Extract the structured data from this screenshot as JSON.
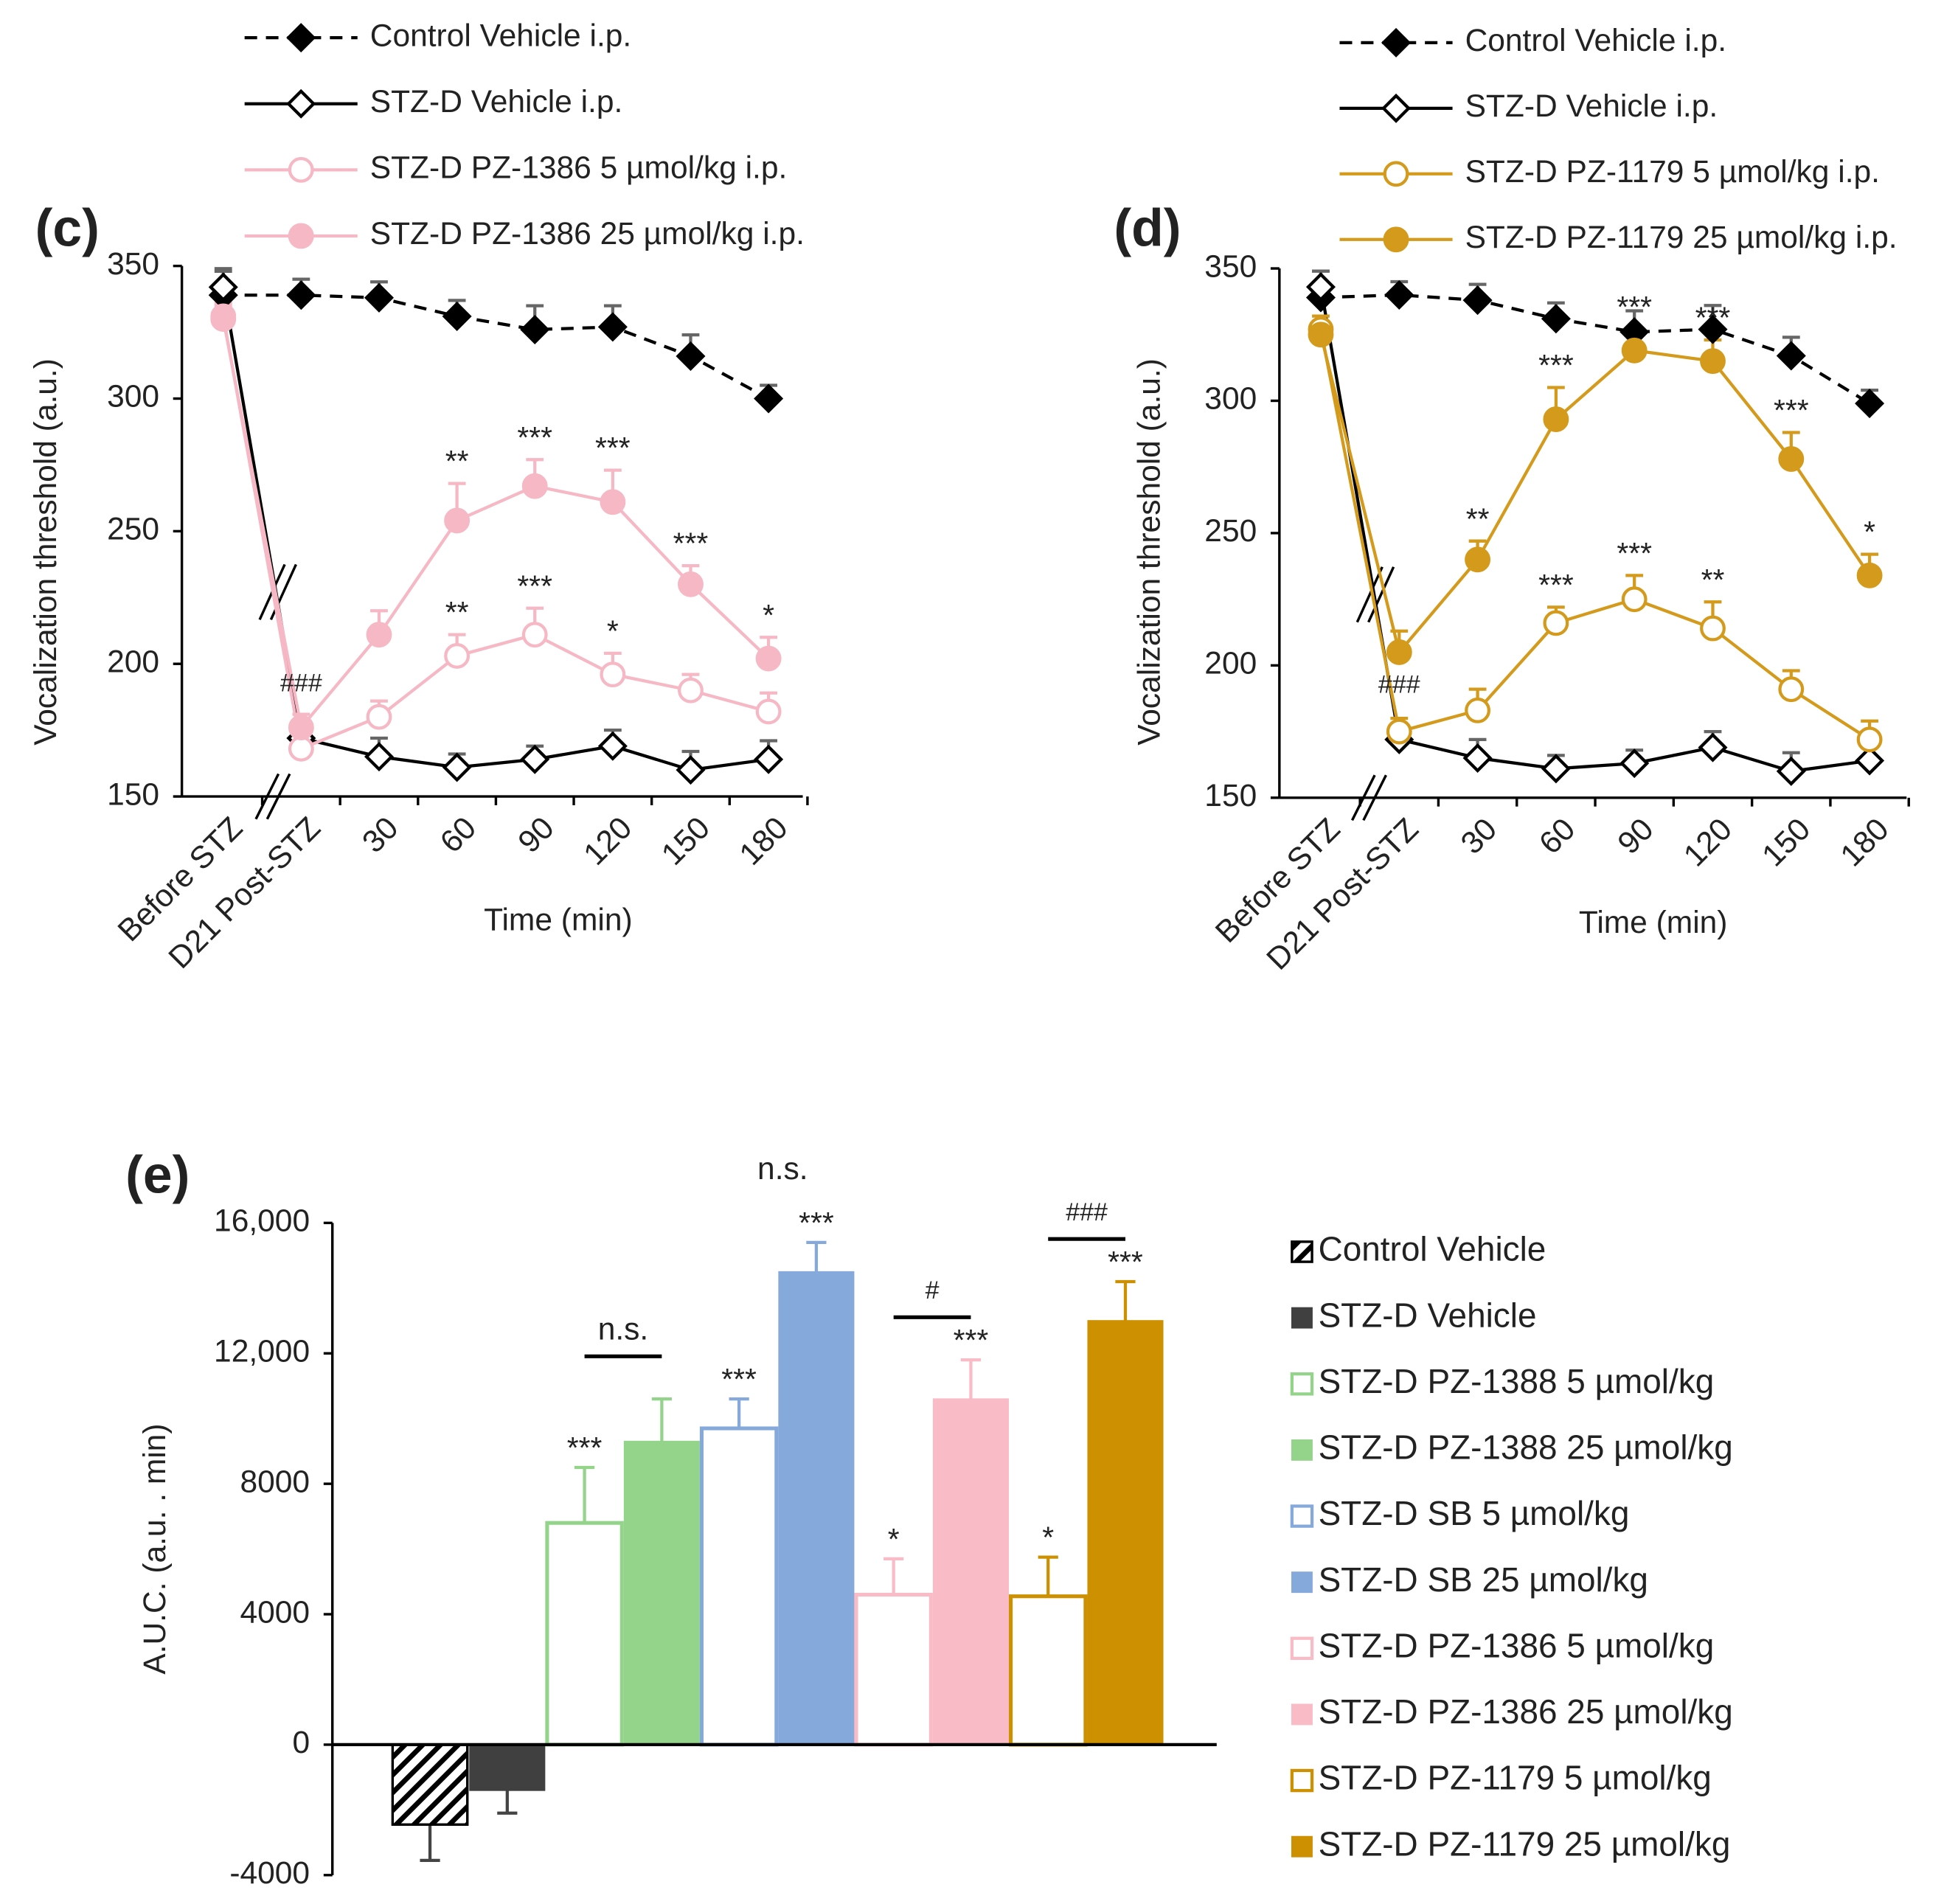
{
  "chart_data": [
    {
      "type": "line",
      "panel_label": "(c)",
      "y_label": "Vocalization threshold  (a.u.)",
      "x_label": "Time  (min)",
      "categories": [
        "Before STZ",
        "D21 Post-STZ",
        "30",
        "60",
        "90",
        "120",
        "150",
        "180"
      ],
      "ylim": [
        150,
        350
      ],
      "yticks": [
        150,
        200,
        250,
        300,
        350
      ],
      "series": [
        {
          "name": "Control Vehicle i.p.",
          "color": "#000000",
          "dashed": true,
          "marker": "diamond",
          "filled": true,
          "values": [
            339,
            339,
            338,
            331,
            326,
            327,
            316,
            300
          ],
          "errors": [
            10,
            6,
            6,
            6,
            9,
            8,
            8,
            5
          ],
          "significance": [
            null,
            null,
            null,
            null,
            null,
            null,
            null,
            null
          ]
        },
        {
          "name": "STZ-D Vehicle i.p.",
          "color": "#000000",
          "dashed": false,
          "marker": "diamond",
          "filled": false,
          "values": [
            342,
            172,
            165,
            161,
            164,
            169,
            160,
            164
          ],
          "errors": [
            6,
            5,
            7,
            5,
            5,
            6,
            7,
            7
          ],
          "significance": [
            null,
            "###",
            null,
            null,
            null,
            null,
            null,
            null
          ]
        },
        {
          "name": "STZ-D PZ-1386 5 µmol/kg i.p.",
          "color": "#f5b8c4",
          "dashed": false,
          "marker": "circle",
          "filled": false,
          "values": [
            331,
            168,
            180,
            203,
            211,
            196,
            190,
            182
          ],
          "errors": [
            5,
            5,
            6,
            8,
            10,
            8,
            6,
            7
          ],
          "significance": [
            null,
            null,
            null,
            "**",
            "***",
            "*",
            null,
            null
          ]
        },
        {
          "name": "STZ-D PZ-1386 25 µmol/kg i.p.",
          "color": "#f5b8c4",
          "dashed": false,
          "marker": "circle",
          "filled": true,
          "values": [
            330,
            176,
            211,
            254,
            267,
            261,
            230,
            202
          ],
          "errors": [
            5,
            5,
            9,
            14,
            10,
            12,
            7,
            8
          ],
          "significance": [
            null,
            null,
            null,
            "**",
            "***",
            "***",
            "***",
            "*"
          ]
        }
      ]
    },
    {
      "type": "line",
      "panel_label": "(d)",
      "y_label": "Vocalization threshold  (a.u.)",
      "x_label": "Time  (min)",
      "categories": [
        "Before STZ",
        "D21 Post-STZ",
        "30",
        "60",
        "90",
        "120",
        "150",
        "180"
      ],
      "ylim": [
        150,
        350
      ],
      "yticks": [
        150,
        200,
        250,
        300,
        350
      ],
      "series": [
        {
          "name": "Control Vehicle i.p.",
          "color": "#000000",
          "dashed": true,
          "marker": "diamond",
          "filled": true,
          "values": [
            339,
            340,
            338,
            331,
            326,
            327,
            317,
            299
          ],
          "errors": [
            10,
            5,
            6,
            6,
            8,
            9,
            7,
            5
          ],
          "significance": [
            null,
            null,
            null,
            null,
            null,
            null,
            null,
            null
          ]
        },
        {
          "name": "STZ-D Vehicle i.p.",
          "color": "#000000",
          "dashed": false,
          "marker": "diamond",
          "filled": false,
          "values": [
            343,
            172,
            165,
            161,
            163,
            169,
            160,
            164
          ],
          "errors": [
            6,
            5,
            7,
            5,
            5,
            6,
            7,
            7
          ],
          "significance": [
            null,
            "###",
            null,
            null,
            null,
            null,
            null,
            null
          ]
        },
        {
          "name": "STZ-D PZ-1179 5 µmol/kg i.p.",
          "color": "#d49a1c",
          "dashed": false,
          "marker": "circle",
          "filled": false,
          "values": [
            327,
            175,
            183,
            216,
            225,
            214,
            191,
            172
          ],
          "errors": [
            5,
            5,
            8,
            6,
            9,
            10,
            7,
            7
          ],
          "significance": [
            null,
            null,
            null,
            "***",
            "***",
            "**",
            null,
            null
          ]
        },
        {
          "name": "STZ-D PZ-1179 25 µmol/kg i.p.",
          "color": "#d49a1c",
          "dashed": false,
          "marker": "circle",
          "filled": true,
          "values": [
            325,
            205,
            240,
            293,
            319,
            315,
            278,
            234
          ],
          "errors": [
            5,
            8,
            7,
            12,
            8,
            8,
            10,
            8
          ],
          "significance": [
            null,
            null,
            "**",
            "***",
            "***",
            "***",
            "***",
            "*"
          ]
        }
      ]
    },
    {
      "type": "bar",
      "panel_label": "(e)",
      "y_label": "A.U.C. (a.u. . min)",
      "ylim": [
        -4000,
        16000
      ],
      "yticks": [
        -4000,
        0,
        4000,
        8000,
        {
          "value": 12000,
          "label": "12,000"
        },
        {
          "value": 16000,
          "label": "16,000"
        }
      ],
      "categories": [
        "Control Vehicle",
        "STZ-D Vehicle",
        "STZ-D PZ-1388 5 µmol/kg",
        "STZ-D PZ-1388 25 µmol/kg",
        "STZ-D SB 5 µmol/kg",
        "STZ-D SB 25 µmol/kg",
        "STZ-D PZ-1386 5 µmol/kg",
        "STZ-D PZ-1386 25 µmol/kg",
        "STZ-D PZ-1179 5 µmol/kg",
        "STZ-D PZ-1179 25 µmol/kg"
      ],
      "colors": [
        "#000000",
        "#404040",
        "#93d48a",
        "#93d48a",
        "#86a9dc",
        "#86a9dc",
        "#f9bcc7",
        "#f9bcc7",
        "#cc9000",
        "#cc9000"
      ],
      "styles": [
        "hatch",
        "solid",
        "outline",
        "solid",
        "outline",
        "solid",
        "outline",
        "solid",
        "outline",
        "solid"
      ],
      "values": [
        -2450,
        -1400,
        6800,
        9300,
        9700,
        14500,
        4600,
        10600,
        4550,
        13000
      ],
      "errors": [
        1100,
        700,
        1700,
        1300,
        900,
        900,
        1100,
        1200,
        1200,
        1200
      ],
      "significance": [
        null,
        null,
        "***",
        null,
        "***",
        "***",
        "*",
        "***",
        "*",
        "***"
      ],
      "brackets": [
        {
          "text": "n.s.",
          "from": 2,
          "to": 3,
          "line": true
        },
        {
          "text": "n.s.",
          "from": 4,
          "to": 5,
          "line": false
        },
        {
          "text": "#",
          "from": 6,
          "to": 7,
          "line": true
        },
        {
          "text": "###",
          "from": 8,
          "to": 9,
          "line": true
        }
      ]
    }
  ]
}
